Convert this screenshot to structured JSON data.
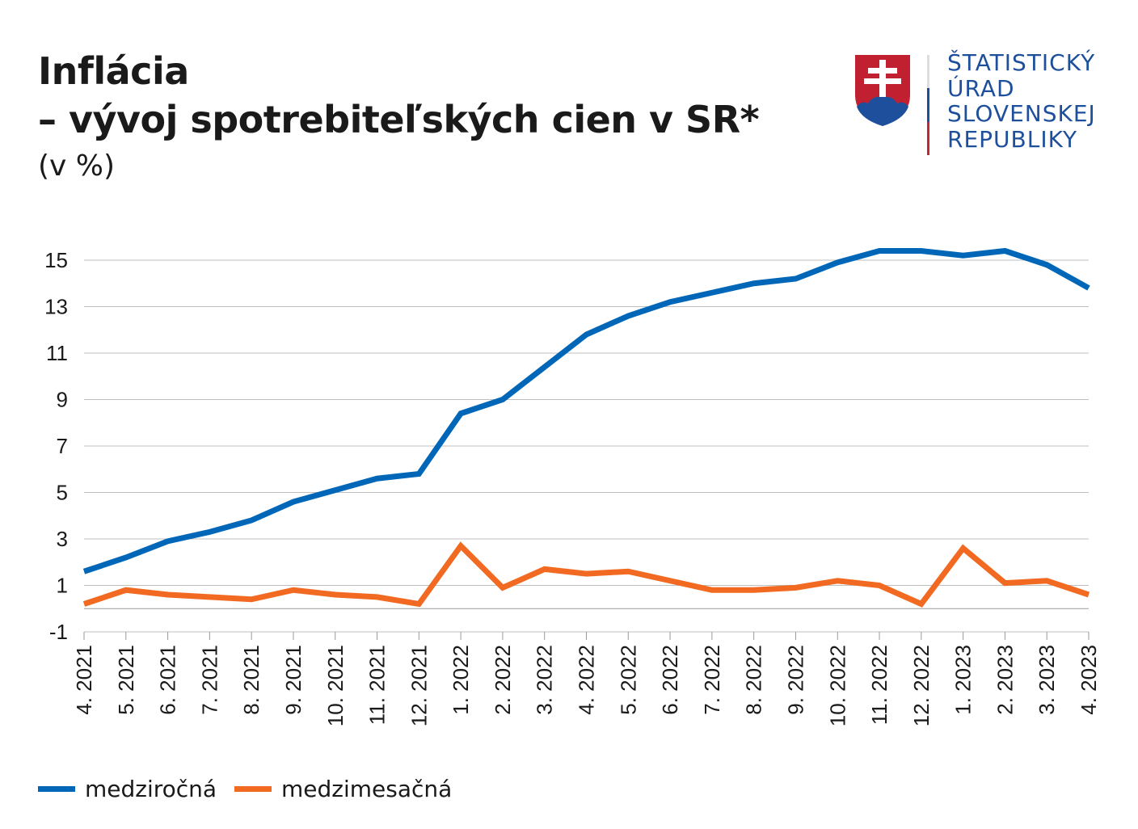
{
  "title_line1": "Inflácia",
  "title_line2": "– vývoj spotrebiteľských cien v SR*",
  "unit": "(v %)",
  "logo": {
    "line1": "ŠTATISTICKÝ",
    "line2": "ÚRAD",
    "line3": "SLOVENSKEJ",
    "line4": "REPUBLIKY"
  },
  "colors": {
    "blue": "#0066b8",
    "orange": "#f26a21",
    "grid": "#bfbfbf"
  },
  "chart_data": {
    "type": "line",
    "title": "Inflácia – vývoj spotrebiteľských cien v SR*",
    "ylabel": "v %",
    "ylim": [
      -1,
      15
    ],
    "yticks": [
      15,
      13,
      11,
      9,
      7,
      5,
      3,
      1,
      -1
    ],
    "grid": true,
    "legend": "bottom-left",
    "x": [
      "4. 2021",
      "5. 2021",
      "6. 2021",
      "7. 2021",
      "8. 2021",
      "9. 2021",
      "10. 2021",
      "11. 2021",
      "12. 2021",
      "1. 2022",
      "2. 2022",
      "3. 2022",
      "4. 2022",
      "5. 2022",
      "6. 2022",
      "7. 2022",
      "8. 2022",
      "9. 2022",
      "10. 2022",
      "11. 2022",
      "12. 2022",
      "1. 2023",
      "2. 2023",
      "3. 2023",
      "4. 2023"
    ],
    "series": [
      {
        "name": "medziročná",
        "color": "#0066b8",
        "values": [
          1.6,
          2.2,
          2.9,
          3.3,
          3.8,
          4.6,
          5.1,
          5.6,
          5.8,
          8.4,
          9.0,
          10.4,
          11.8,
          12.6,
          13.2,
          13.6,
          14.0,
          14.2,
          14.9,
          15.4,
          15.4,
          15.2,
          15.4,
          14.8,
          13.8
        ]
      },
      {
        "name": "medzimesačná",
        "color": "#f26a21",
        "values": [
          0.2,
          0.8,
          0.6,
          0.5,
          0.4,
          0.8,
          0.6,
          0.5,
          0.2,
          2.7,
          0.9,
          1.7,
          1.5,
          1.6,
          1.2,
          0.8,
          0.8,
          0.9,
          1.2,
          1.0,
          0.2,
          2.6,
          1.1,
          1.2,
          0.6
        ]
      }
    ]
  }
}
